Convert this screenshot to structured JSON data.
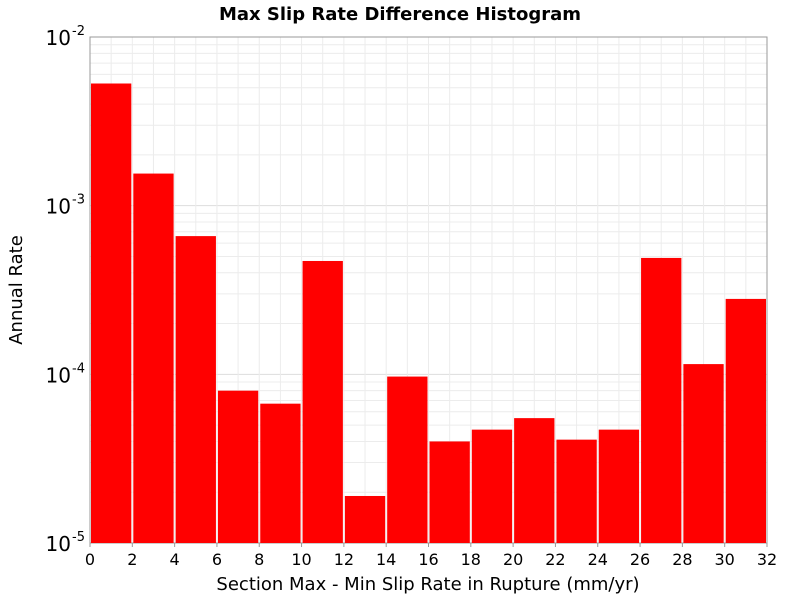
{
  "chart_data": {
    "type": "bar",
    "title": "Max Slip Rate Difference Histogram",
    "xlabel": "Section Max - Min Slip Rate in Rupture (mm/yr)",
    "ylabel": "Annual Rate",
    "y_scale": "log",
    "xlim": [
      0,
      32
    ],
    "ylim": [
      1e-05,
      0.01
    ],
    "x_ticks": [
      "0",
      "2",
      "4",
      "6",
      "8",
      "10",
      "12",
      "14",
      "16",
      "18",
      "20",
      "22",
      "24",
      "26",
      "28",
      "30",
      "32"
    ],
    "y_ticks": [
      {
        "base": "10",
        "exp": "-2"
      },
      {
        "base": "10",
        "exp": "-3"
      },
      {
        "base": "10",
        "exp": "-4"
      },
      {
        "base": "10",
        "exp": "-5"
      }
    ],
    "bin_width": 2,
    "bar_color": "#ff0000",
    "grid": true,
    "bars": [
      {
        "x_start": 0,
        "value": 0.0053
      },
      {
        "x_start": 2,
        "value": 0.00155
      },
      {
        "x_start": 4,
        "value": 0.00066
      },
      {
        "x_start": 6,
        "value": 8e-05
      },
      {
        "x_start": 8,
        "value": 6.7e-05
      },
      {
        "x_start": 10,
        "value": 0.00047
      },
      {
        "x_start": 12,
        "value": 1.9e-05
      },
      {
        "x_start": 14,
        "value": 9.7e-05
      },
      {
        "x_start": 16,
        "value": 4e-05
      },
      {
        "x_start": 18,
        "value": 4.7e-05
      },
      {
        "x_start": 20,
        "value": 5.5e-05
      },
      {
        "x_start": 22,
        "value": 4.1e-05
      },
      {
        "x_start": 24,
        "value": 4.7e-05
      },
      {
        "x_start": 26,
        "value": 0.00049
      },
      {
        "x_start": 28,
        "value": 0.000115
      },
      {
        "x_start": 30,
        "value": 0.00028
      }
    ]
  }
}
